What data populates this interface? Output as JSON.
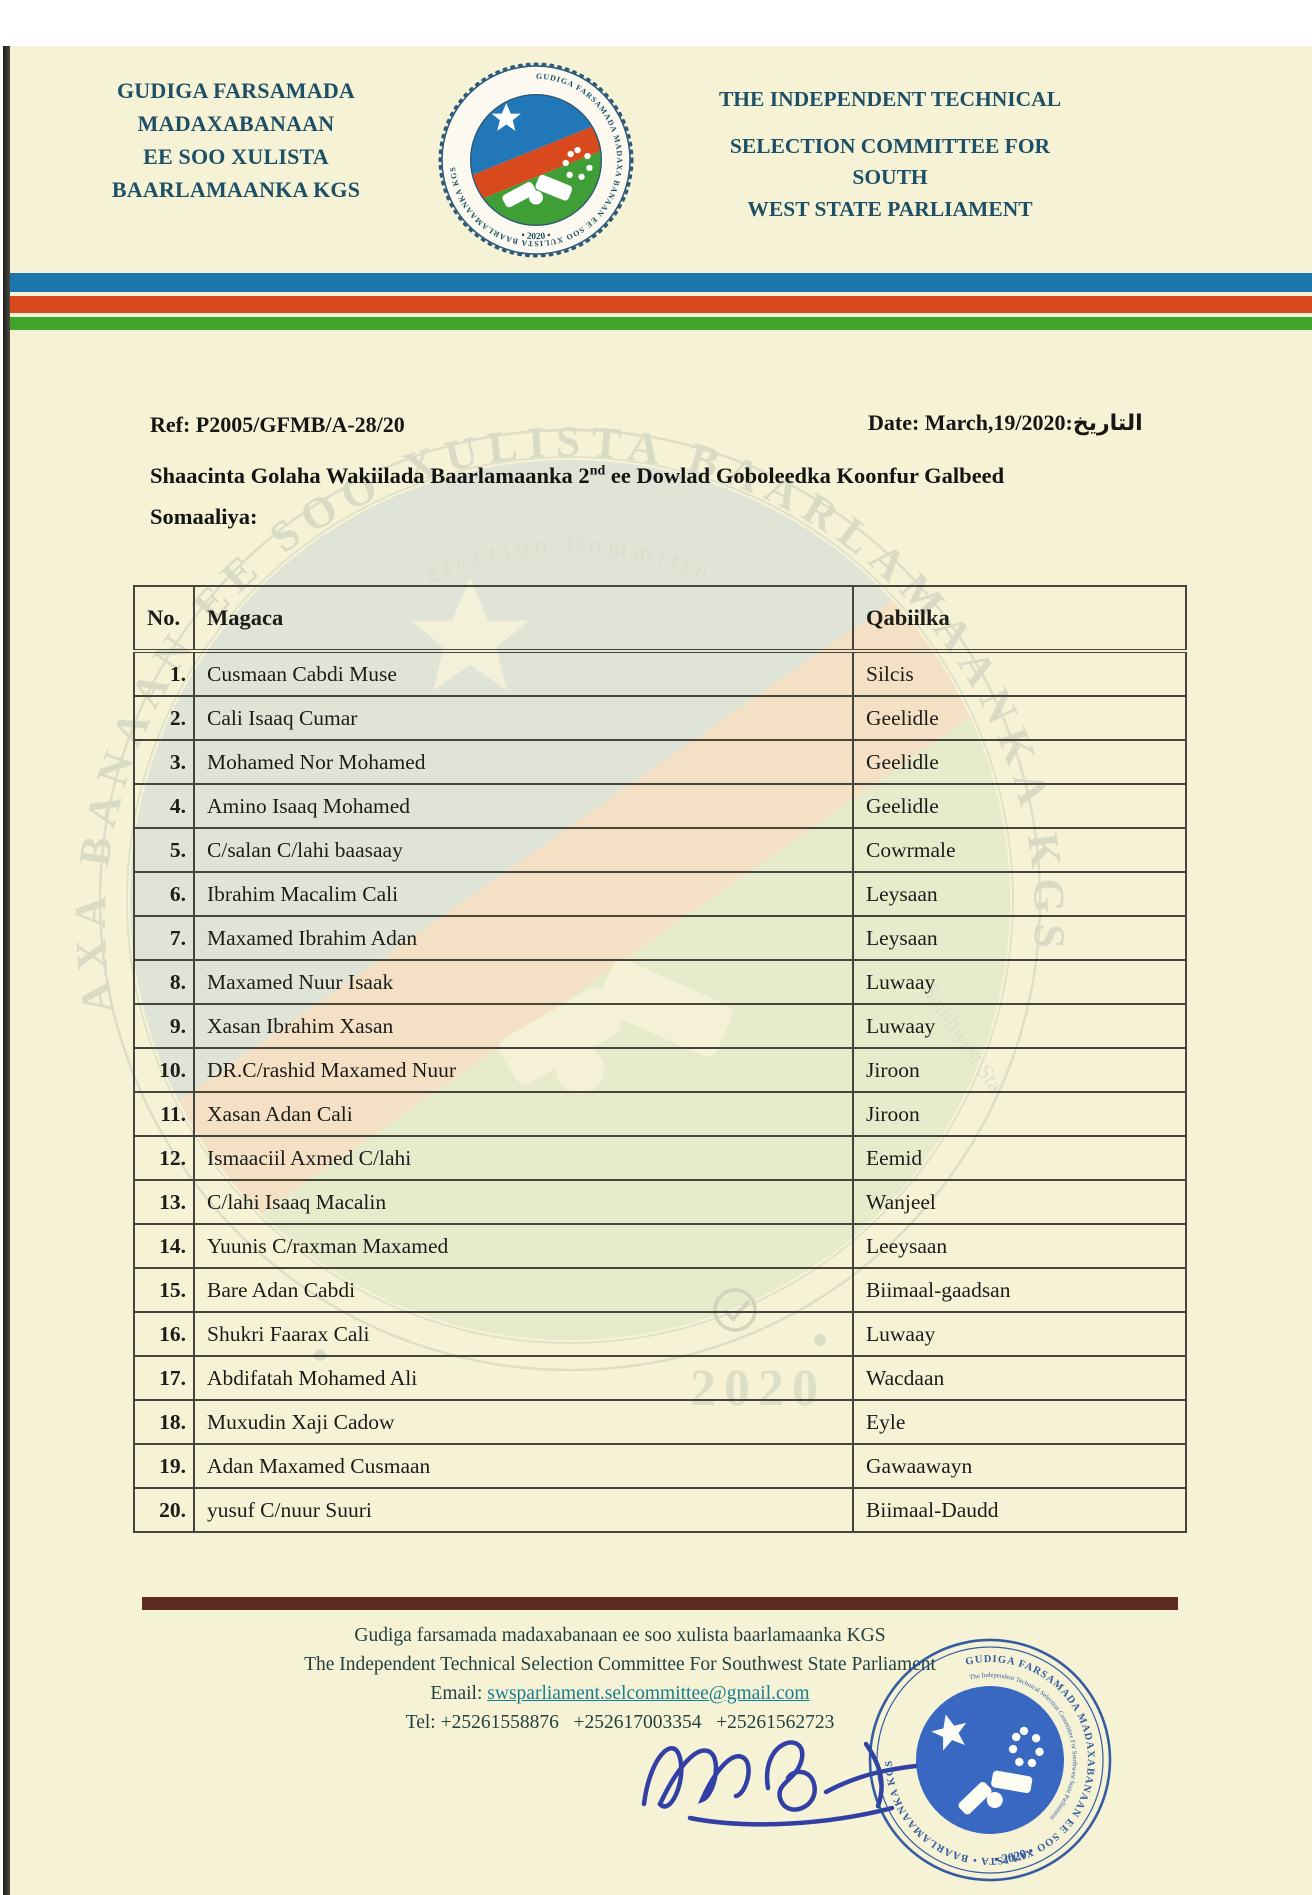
{
  "header": {
    "left_title": {
      "lines": [
        "GUDIGA FARSAMADA MADAXABANAAN",
        "EE SOO XULISTA",
        "BAARLAMAANKA KGS"
      ]
    },
    "right_title": {
      "lines": [
        "THE INDEPENDENT TECHNICAL",
        "SELECTION COMMITTEE FOR SOUTH",
        "WEST STATE PARLIAMENT"
      ]
    },
    "logo": {
      "arc_text": "GUDIGA FARSAMADA MADAXA BANAAN EE SOO XULISTA BAARLAMAANKA KGS",
      "year": "•  2020  •"
    }
  },
  "meta": {
    "ref": "Ref: P2005/GFMB/A-28/20",
    "date": "Date: March,19/2020:التاريخ"
  },
  "subject": {
    "line1_pre": "Shaacinta Golaha Wakiilada  Baarlamaanka 2",
    "sup": "nd",
    "line1_post": " ee Dowlad Goboleedka Koonfur Galbeed",
    "line2": "Somaaliya:"
  },
  "table": {
    "headers": [
      "No.",
      "Magaca",
      "Qabiilka"
    ],
    "rows": [
      {
        "no": "1.",
        "name": "Cusmaan Cabdi Muse",
        "clan": "Silcis"
      },
      {
        "no": "2.",
        "name": "Cali Isaaq Cumar",
        "clan": "Geelidle"
      },
      {
        "no": "3.",
        "name": "Mohamed Nor Mohamed",
        "clan": "Geelidle"
      },
      {
        "no": "4.",
        "name": "Amino Isaaq Mohamed",
        "clan": "Geelidle"
      },
      {
        "no": "5.",
        "name": "C/salan C/lahi baasaay",
        "clan": "Cowrmale"
      },
      {
        "no": "6.",
        "name": "Ibrahim Macalim Cali",
        "clan": "Leysaan"
      },
      {
        "no": "7.",
        "name": "Maxamed Ibrahim Adan",
        "clan": "Leysaan"
      },
      {
        "no": "8.",
        "name": "Maxamed Nuur Isaak",
        "clan": "Luwaay"
      },
      {
        "no": "9.",
        "name": "Xasan Ibrahim Xasan",
        "clan": "Luwaay"
      },
      {
        "no": "10.",
        "name": "DR.C/rashid Maxamed Nuur",
        "clan": "Jiroon"
      },
      {
        "no": "11.",
        "name": "Xasan Adan Cali",
        "clan": "Jiroon"
      },
      {
        "no": "12.",
        "name": "Ismaaciil Axmed C/lahi",
        "clan": "Eemid"
      },
      {
        "no": "13.",
        "name": "C/lahi Isaaq Macalin",
        "clan": "Wanjeel"
      },
      {
        "no": "14.",
        "name": "Yuunis C/raxman Maxamed",
        "clan": "Leeysaan"
      },
      {
        "no": "15.",
        "name": "Bare Adan Cabdi",
        "clan": "Biimaal-gaadsan"
      },
      {
        "no": "16.",
        "name": "Shukri Faarax Cali",
        "clan": "Luwaay"
      },
      {
        "no": "17.",
        "name": "Abdifatah Mohamed Ali",
        "clan": "Wacdaan"
      },
      {
        "no": "18.",
        "name": "Muxudin Xaji Cadow",
        "clan": "Eyle"
      },
      {
        "no": "19.",
        "name": "Adan Maxamed Cusmaan",
        "clan": "Gawaawayn"
      },
      {
        "no": "20.",
        "name": "yusuf C/nuur Suuri",
        "clan": "Biimaal-Daudd"
      }
    ]
  },
  "watermark": {
    "arc_text": "AXA BANAAN EE SOO XULISTA BAARLAMAANKA KGS",
    "inner_arc_text": "election Committe",
    "side_text": "Southwest Sta",
    "year": "2020"
  },
  "footer": {
    "line1": "Gudiga farsamada madaxabanaan  ee soo xulista baarlamaanka KGS",
    "line2": "The Independent Technical  Selection Committee For  Southwest  State Parliament",
    "email_label": "Email: ",
    "email": "swsparliament.selcommittee@gmail.com",
    "tel": "Tel: +25261558876   +252617003354   +25261562723"
  },
  "stamp": {
    "arc_text": "GUDIGA FARSAMADA MADAXABANAAN EE SOO XULISTA • BAARLAMAANKA KGS",
    "inner_arc_text": "The Independent Technical Selection Committee For Southwest State Parliament",
    "year": "•   2020   •"
  },
  "colors": {
    "band_blue": "#1a76ad",
    "band_red": "#d8491d",
    "band_green": "#41a32a",
    "title_teal": "#1d4f66",
    "separator_maroon": "#5e2a22",
    "email_link": "#177e8e",
    "stamp_blue": "#2a5ec0",
    "page_cream": "#f6f2d6"
  }
}
